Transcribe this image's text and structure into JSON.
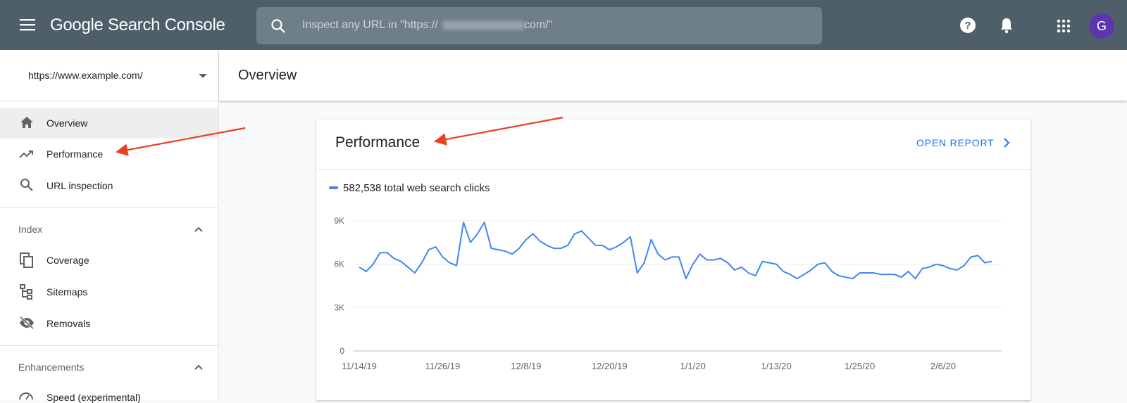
{
  "header": {
    "product": "Google Search Console",
    "search_prefix": "Inspect any URL in \"https://",
    "search_suffix": "com/\"",
    "avatar": "G"
  },
  "sidebar": {
    "property": "https://www.example.com/",
    "items": [
      "Overview",
      "Performance",
      "URL inspection"
    ],
    "sections": [
      {
        "title": "Index",
        "items": [
          "Coverage",
          "Sitemaps",
          "Removals"
        ]
      },
      {
        "title": "Enhancements",
        "items": [
          "Speed (experimental)"
        ]
      }
    ]
  },
  "page_title": "Overview",
  "card": {
    "title": "Performance",
    "action": "OPEN REPORT"
  },
  "chart_data": {
    "type": "line",
    "categories": [
      "11/14/19",
      null,
      null,
      null,
      null,
      null,
      null,
      null,
      null,
      null,
      null,
      null,
      "11/26/19",
      null,
      null,
      null,
      null,
      null,
      null,
      null,
      null,
      null,
      null,
      null,
      "12/8/19",
      null,
      null,
      null,
      null,
      null,
      null,
      null,
      null,
      null,
      null,
      null,
      "12/20/19",
      null,
      null,
      null,
      null,
      null,
      null,
      null,
      null,
      null,
      null,
      null,
      "1/1/20",
      null,
      null,
      null,
      null,
      null,
      null,
      null,
      null,
      null,
      null,
      null,
      "1/13/20",
      null,
      null,
      null,
      null,
      null,
      null,
      null,
      null,
      null,
      null,
      null,
      "1/25/20",
      null,
      null,
      null,
      null,
      null,
      null,
      null,
      null,
      null,
      null,
      null,
      "2/6/20",
      null,
      null,
      null,
      null,
      null,
      null,
      null
    ],
    "series": [
      {
        "name": "582,538 total web search clicks",
        "color": "#4285f4",
        "values": [
          5800,
          5500,
          6000,
          6800,
          6800,
          6400,
          6200,
          5800,
          5400,
          6100,
          7000,
          7200,
          6500,
          6100,
          5900,
          8900,
          7500,
          8100,
          8900,
          7100,
          7000,
          6900,
          6700,
          7100,
          7700,
          8100,
          7600,
          7300,
          7100,
          7100,
          7300,
          8100,
          8300,
          7800,
          7300,
          7300,
          7000,
          7200,
          7500,
          7900,
          5400,
          6100,
          7700,
          6700,
          6300,
          6500,
          6500,
          5000,
          6000,
          6700,
          6300,
          6300,
          6400,
          6100,
          5600,
          5800,
          5400,
          5200,
          6200,
          6100,
          6000,
          5500,
          5300,
          5000,
          5300,
          5600,
          6000,
          6100,
          5500,
          5200,
          5100,
          5000,
          5400,
          5400,
          5400,
          5300,
          5300,
          5300,
          5100,
          5500,
          5000,
          5700,
          5800,
          6000,
          5900,
          5700,
          5600,
          5900,
          6500,
          6600,
          6100,
          6200
        ]
      }
    ],
    "ylim": [
      0,
      9000
    ],
    "yticks": [
      0,
      {
        "value": 3000,
        "label": "3K"
      },
      {
        "value": 6000,
        "label": "6K"
      },
      {
        "value": 9000,
        "label": "9K"
      }
    ],
    "grid": true
  }
}
